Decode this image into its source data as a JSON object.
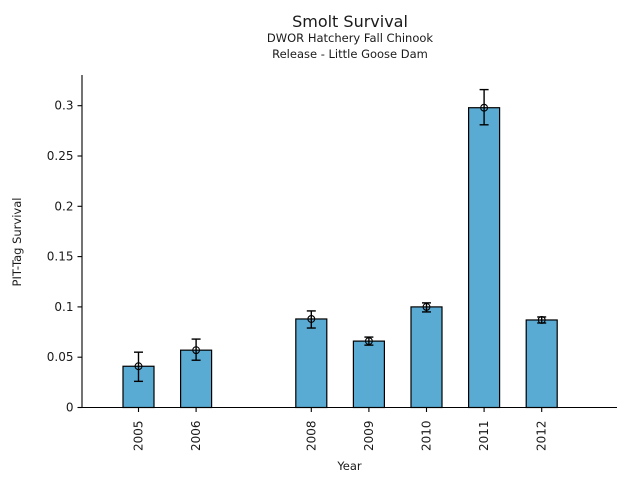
{
  "figure": {
    "title": "Smolt Survival",
    "subtitle_line1": "DWOR Hatchery Fall Chinook",
    "subtitle_line2": "Release - Little Goose Dam"
  },
  "chart_data": {
    "type": "bar",
    "title": "Smolt Survival",
    "subtitle": [
      "DWOR Hatchery Fall Chinook",
      "Release - Little Goose Dam"
    ],
    "xlabel": "Year",
    "ylabel": "PIT-Tag Survival",
    "categories": [
      "2005",
      "2006",
      "2008",
      "2009",
      "2010",
      "2011",
      "2012"
    ],
    "values": [
      0.041,
      0.057,
      0.088,
      0.066,
      0.1,
      0.298,
      0.087
    ],
    "error_low": [
      0.026,
      0.047,
      0.079,
      0.062,
      0.095,
      0.281,
      0.084
    ],
    "error_high": [
      0.055,
      0.068,
      0.096,
      0.07,
      0.104,
      0.316,
      0.09
    ],
    "missing_category": "2007",
    "x_year_start": 2005,
    "x_year_end": 2012,
    "ylim": [
      0,
      0.33
    ],
    "y_ticks": [
      0,
      0.05,
      0.1,
      0.15,
      0.2,
      0.25,
      0.3
    ],
    "y_tick_labels": [
      "0",
      "0.05",
      "0.1",
      "0.15",
      "0.2",
      "0.25",
      "0.3"
    ],
    "grid": false,
    "legend": false,
    "bar_color": "#5AABD4",
    "bar_edge_color": "#000000",
    "error_bar_color": "#000000",
    "axis_color": "#000000",
    "background_color": "#FFFFFF"
  }
}
